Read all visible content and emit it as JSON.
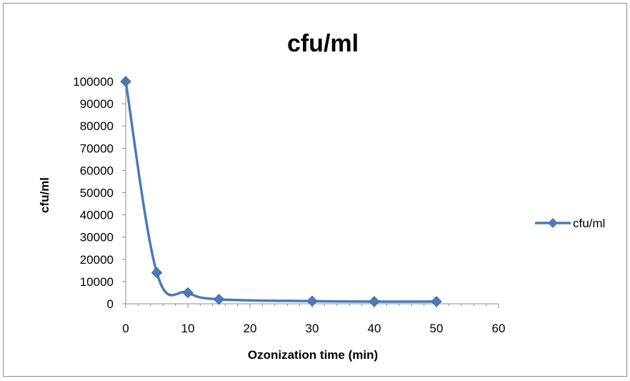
{
  "chart_data": {
    "type": "scatter",
    "title": "cfu/ml",
    "xlabel": "Ozonization time (min)",
    "ylabel": "cfu/ml",
    "xlim": [
      0,
      60
    ],
    "ylim": [
      0,
      100000
    ],
    "xticks": [
      0,
      10,
      20,
      30,
      40,
      50,
      60
    ],
    "yticks": [
      0,
      10000,
      20000,
      30000,
      40000,
      50000,
      60000,
      70000,
      80000,
      90000,
      100000
    ],
    "grid": false,
    "smooth_line": true,
    "legend_position": "right",
    "series": [
      {
        "name": "cfu/ml",
        "color": "#4a7ab8",
        "marker": "diamond",
        "x": [
          0,
          5,
          10,
          15,
          30,
          40,
          50
        ],
        "y": [
          100000,
          14000,
          5000,
          2000,
          1200,
          1000,
          1000
        ]
      }
    ]
  }
}
